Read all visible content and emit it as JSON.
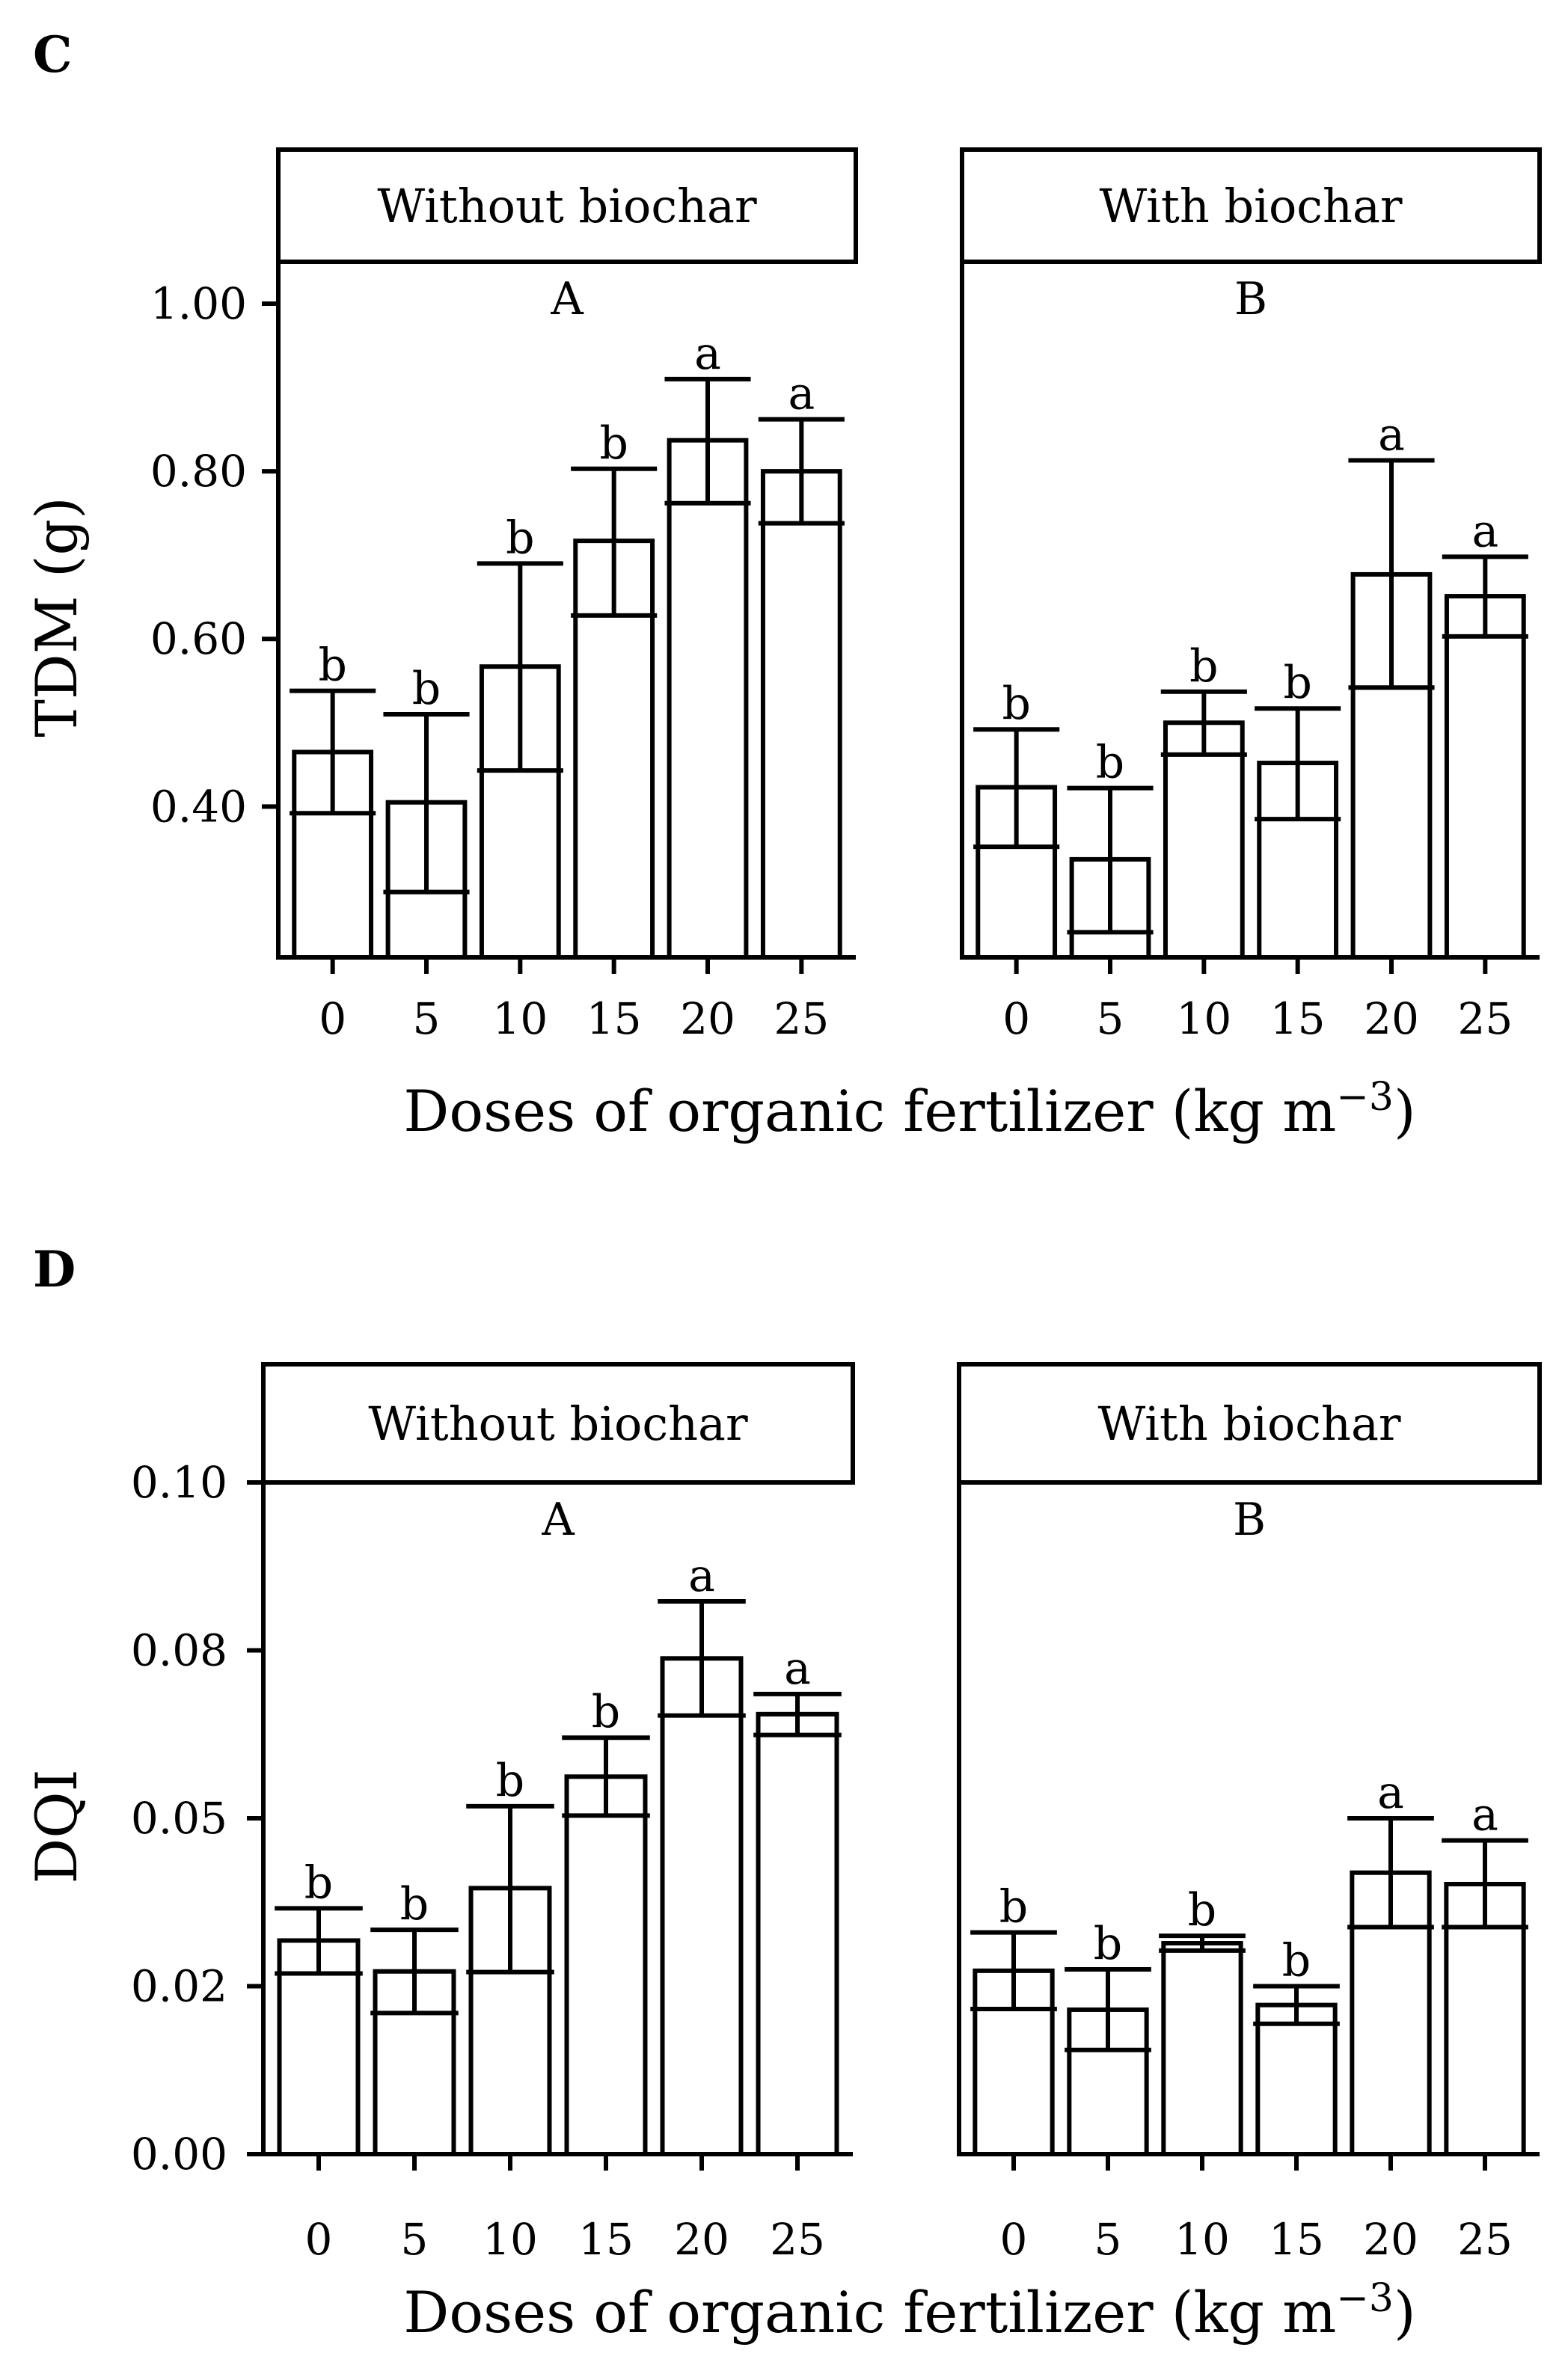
{
  "chart_data": [
    {
      "type": "bar",
      "panel_label": "C",
      "ylabel": "TDM (g)",
      "xlabel": "Doses of organic fertilizer (kg m",
      "xlabel_exponent": "−3",
      "xlabel_close": ")",
      "categories": [
        "0",
        "5",
        "10",
        "15",
        "20",
        "25"
      ],
      "yticks": [
        "0.40",
        "0.60",
        "0.80",
        "1.00"
      ],
      "ylim": [
        0.22,
        1.05
      ],
      "grid": false,
      "facets": [
        {
          "strip": "Without biochar",
          "group_letter": "A",
          "values": [
            0.465,
            0.405,
            0.567,
            0.717,
            0.837,
            0.8
          ],
          "error_low": [
            0.392,
            0.298,
            0.443,
            0.628,
            0.762,
            0.738
          ],
          "error_high": [
            0.538,
            0.51,
            0.69,
            0.803,
            0.91,
            0.862
          ],
          "letters": [
            "b",
            "b",
            "b",
            "b",
            "a",
            "a"
          ]
        },
        {
          "strip": "With biochar",
          "group_letter": "B",
          "values": [
            0.423,
            0.337,
            0.5,
            0.452,
            0.677,
            0.651
          ],
          "error_low": [
            0.352,
            0.25,
            0.462,
            0.385,
            0.542,
            0.603
          ],
          "error_high": [
            0.492,
            0.422,
            0.537,
            0.517,
            0.813,
            0.698
          ],
          "letters": [
            "b",
            "b",
            "b",
            "b",
            "a",
            "a"
          ]
        }
      ]
    },
    {
      "type": "bar",
      "panel_label": "D",
      "ylabel": "DQI",
      "xlabel": "Doses of organic fertilizer (kg m",
      "xlabel_exponent": "−3",
      "xlabel_close": ")",
      "categories": [
        "0",
        "5",
        "10",
        "15",
        "20",
        "25"
      ],
      "yticks": [
        "0.00",
        "0.02",
        "0.05",
        "0.08",
        "0.10"
      ],
      "ytick_values": [
        0.0,
        0.025,
        0.05,
        0.075,
        0.1
      ],
      "ylim": [
        0.0,
        0.1
      ],
      "grid": false,
      "facets": [
        {
          "strip": "Without biochar",
          "group_letter": "A",
          "values": [
            0.0318,
            0.0272,
            0.0396,
            0.0562,
            0.0738,
            0.0655
          ],
          "error_low": [
            0.0269,
            0.021,
            0.0271,
            0.0504,
            0.0653,
            0.0624
          ],
          "error_high": [
            0.0366,
            0.0334,
            0.0518,
            0.062,
            0.0823,
            0.0685
          ],
          "letters": [
            "b",
            "b",
            "b",
            "b",
            "a",
            "a"
          ]
        },
        {
          "strip": "With biochar",
          "group_letter": "B",
          "values": [
            0.0273,
            0.0215,
            0.0314,
            0.0222,
            0.0419,
            0.0402
          ],
          "error_low": [
            0.0216,
            0.0155,
            0.0303,
            0.0194,
            0.0338,
            0.0338
          ],
          "error_high": [
            0.033,
            0.0275,
            0.0325,
            0.025,
            0.05,
            0.0467
          ],
          "letters": [
            "b",
            "b",
            "b",
            "b",
            "a",
            "a"
          ]
        }
      ]
    }
  ]
}
